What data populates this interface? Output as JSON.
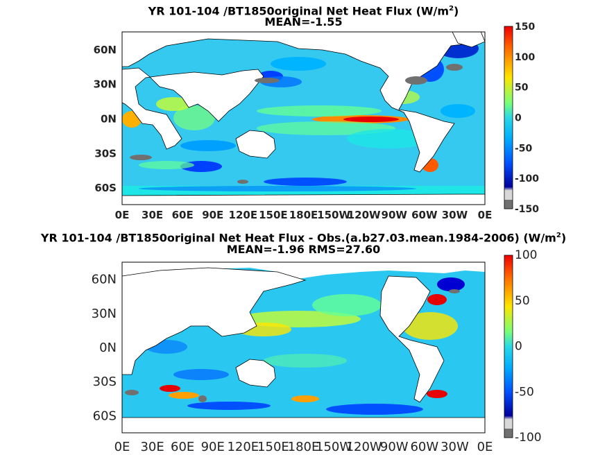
{
  "chart_data": [
    {
      "type": "heatmap",
      "title_prefix": "YR 101-104 /BT1850original  Net Heat Flux (W/m",
      "title_sup": "2",
      "title_suffix": ")",
      "subtitle": "MEAN=-1.55",
      "x_ticks": [
        "0E",
        "30E",
        "60E",
        "90E",
        "120E",
        "150E",
        "180E",
        "150W",
        "120W",
        "90W",
        "60W",
        "30W",
        "0E"
      ],
      "y_ticks": [
        "60N",
        "30N",
        "0N",
        "30S",
        "60S"
      ],
      "colorbar_ticks": [
        "150",
        "100",
        "50",
        "0",
        "-50",
        "-100",
        "-150"
      ],
      "colorbar_range": [
        -150,
        150
      ],
      "mean": -1.55
    },
    {
      "type": "heatmap",
      "title_prefix": "YR 101-104 /BT1850original  Net Heat Flux - Obs.(a.b27.03.mean.1984-2006) (W/m",
      "title_sup": "2",
      "title_suffix": ")",
      "subtitle": "MEAN=-1.96 RMS=27.60",
      "x_ticks": [
        "0E",
        "30E",
        "60E",
        "90E",
        "120E",
        "150E",
        "180E",
        "150W",
        "120W",
        "90W",
        "60W",
        "30W",
        "0E"
      ],
      "y_ticks": [
        "60N",
        "30N",
        "0N",
        "30S",
        "60S"
      ],
      "colorbar_ticks": [
        "100",
        "50",
        "0",
        "-50",
        "-100"
      ],
      "colorbar_range": [
        -100,
        100
      ],
      "mean": -1.96,
      "rms": 27.6
    }
  ],
  "colors": {
    "ocean_base": "#35c9f0",
    "land": "#ffffff",
    "colormap": [
      "#7a0000",
      "#e60000",
      "#ff5a00",
      "#ff9f00",
      "#ffe600",
      "#c8ff32",
      "#64ff96",
      "#1ee6e6",
      "#00b4ff",
      "#0064ff",
      "#0000d2",
      "#00007a"
    ]
  }
}
